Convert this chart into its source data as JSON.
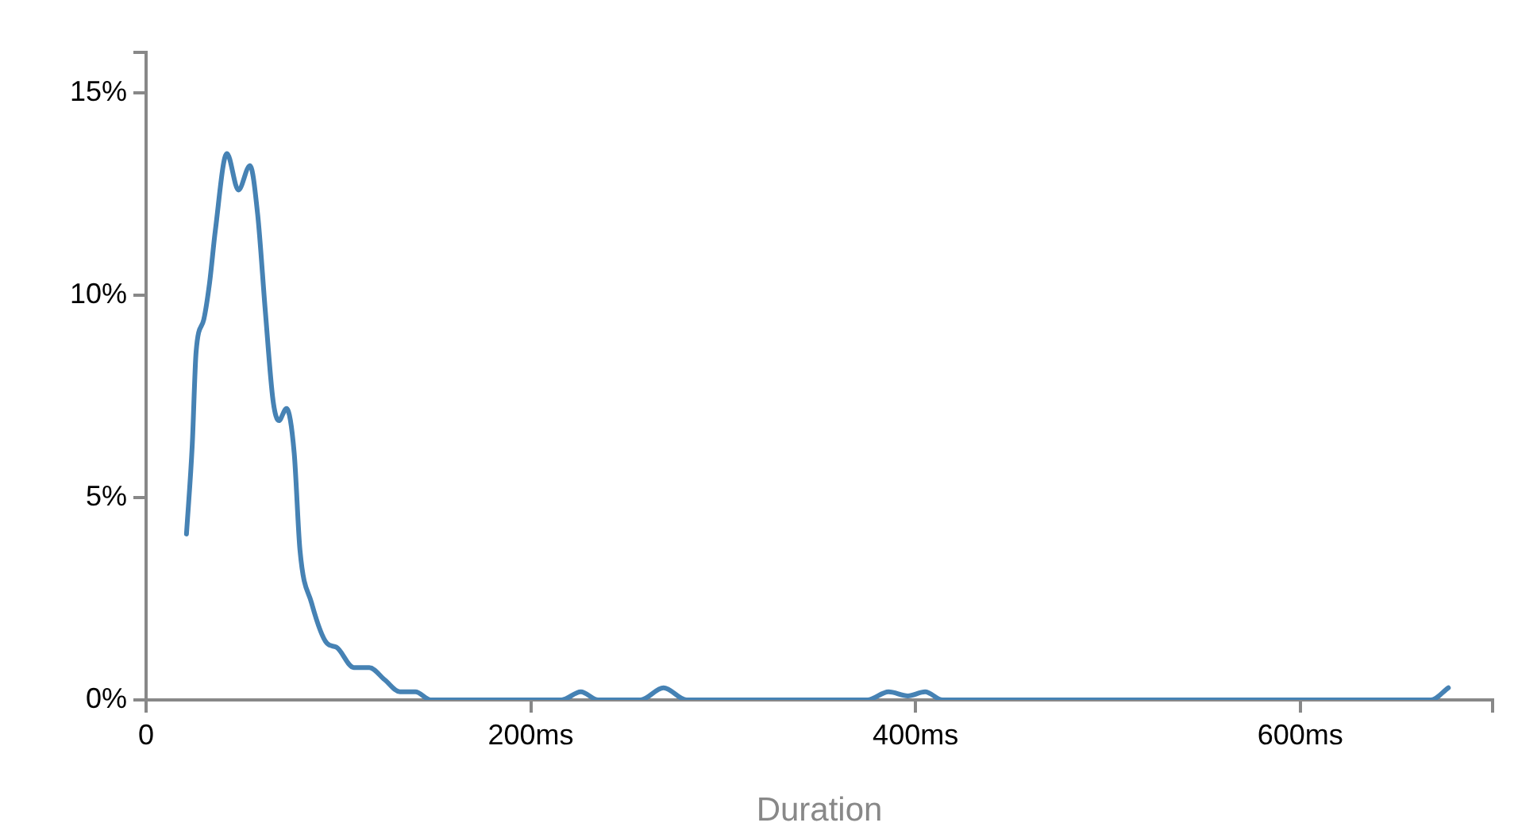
{
  "chart_data": {
    "type": "line",
    "xlabel": "Duration",
    "xlim": [
      0,
      700
    ],
    "ylim": [
      0,
      16
    ],
    "xticks": [
      {
        "value": 0,
        "label": "0"
      },
      {
        "value": 200,
        "label": "200ms"
      },
      {
        "value": 400,
        "label": "400ms"
      },
      {
        "value": 600,
        "label": "600ms"
      },
      {
        "value": 700,
        "label": null
      }
    ],
    "yticks": [
      {
        "value": 0,
        "label": "0%"
      },
      {
        "value": 5,
        "label": "5%"
      },
      {
        "value": 10,
        "label": "10%"
      },
      {
        "value": 15,
        "label": "15%"
      },
      {
        "value": 16,
        "label": null
      }
    ],
    "grid": false,
    "series": [
      {
        "color": "#4682b4",
        "x": [
          21,
          24,
          26,
          30,
          33,
          36,
          42,
          48,
          54,
          58,
          62,
          66,
          69,
          73,
          77,
          80,
          86,
          94,
          99,
          108,
          116,
          124,
          132,
          140,
          148,
          216,
          226,
          235,
          257,
          269,
          281,
          375,
          386,
          396,
          405,
          414,
          668,
          677
        ],
        "values": [
          4.1,
          6.3,
          8.6,
          9.4,
          10.3,
          11.6,
          13.5,
          12.6,
          13.2,
          12.0,
          9.6,
          7.4,
          6.9,
          7.2,
          6.1,
          3.7,
          2.4,
          1.4,
          1.3,
          0.8,
          0.8,
          0.5,
          0.2,
          0.2,
          0,
          0,
          0.2,
          0,
          0,
          0.3,
          0,
          0,
          0.2,
          0.1,
          0.2,
          0,
          0,
          0.3
        ]
      }
    ]
  }
}
